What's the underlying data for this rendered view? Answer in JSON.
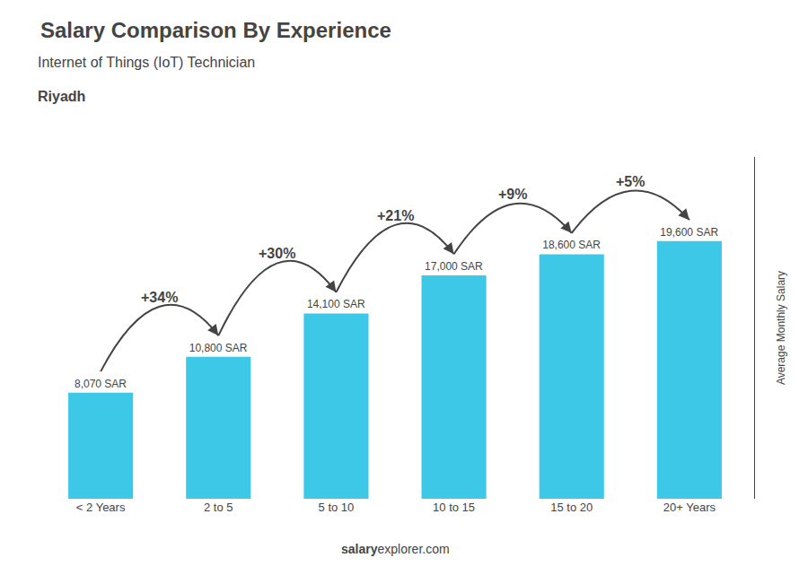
{
  "chart_data": {
    "type": "bar",
    "title": "Salary Comparison By Experience",
    "subtitle": "Internet of Things (IoT) Technician",
    "annotations": [
      "Riyadh",
      "salary",
      "explorer.com"
    ],
    "ylabel": "Average Monthly Salary",
    "categories": [
      "< 2 Years",
      "2 to 5",
      "5 to 10",
      "10 to 15",
      "15 to 20",
      "20+ Years"
    ],
    "values": [
      8070,
      10800,
      14100,
      17000,
      18600,
      19600
    ],
    "value_labels": [
      "8,070 SAR",
      "10,800 SAR",
      "14,100 SAR",
      "17,000 SAR",
      "18,600 SAR",
      "19,600 SAR"
    ],
    "data_labels": true,
    "change_labels": [
      null,
      "+34%",
      "+30%",
      "+21%",
      "+9%",
      "+5%"
    ],
    "color": "#3ec8e8",
    "ylim": [
      0,
      26000
    ],
    "tick_labels": "x",
    "grid": false
  }
}
